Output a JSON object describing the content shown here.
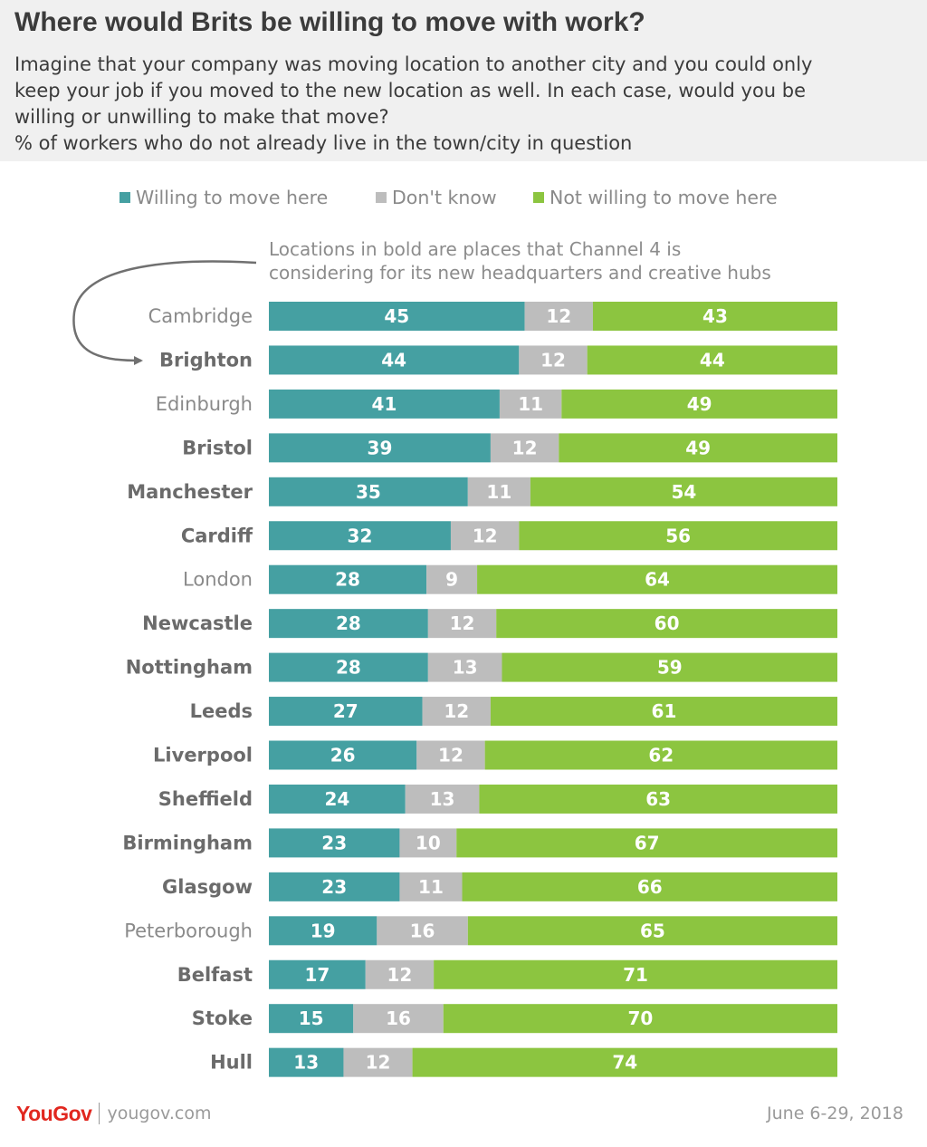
{
  "header": {
    "title": "Where would Brits be willing to move with work?",
    "subtitle_lines": [
      "Imagine that your company was moving location to another city and you could only",
      "keep your job if you moved to the new location as well. In each case, would you be",
      "willing or unwilling to make that move?",
      "% of workers who do not already live in the town/city in question"
    ]
  },
  "note_lines": [
    "Locations in bold are places that Channel 4 is",
    "considering for its new headquarters and creative hubs"
  ],
  "colors": {
    "willing": "#45a0a2",
    "dont_know": "#bdbdbd",
    "not_willing": "#8cc540"
  },
  "chart_data": {
    "type": "bar",
    "orientation": "horizontal",
    "stacked": true,
    "categories": [
      "Cambridge",
      "Brighton",
      "Edinburgh",
      "Bristol",
      "Manchester",
      "Cardiff",
      "London",
      "Newcastle",
      "Nottingham",
      "Leeds",
      "Liverpool",
      "Sheffield",
      "Birmingham",
      "Glasgow",
      "Peterborough",
      "Belfast",
      "Stoke",
      "Hull"
    ],
    "bold_categories": [
      "Brighton",
      "Bristol",
      "Manchester",
      "Cardiff",
      "Newcastle",
      "Nottingham",
      "Leeds",
      "Liverpool",
      "Sheffield",
      "Birmingham",
      "Glasgow",
      "Belfast",
      "Stoke",
      "Hull"
    ],
    "series": [
      {
        "name": "Willing to move here",
        "values": [
          45,
          44,
          41,
          39,
          35,
          32,
          28,
          28,
          28,
          27,
          26,
          24,
          23,
          23,
          19,
          17,
          15,
          13
        ]
      },
      {
        "name": "Don't know",
        "values": [
          12,
          12,
          11,
          12,
          11,
          12,
          9,
          12,
          13,
          12,
          12,
          13,
          10,
          11,
          16,
          12,
          16,
          12
        ]
      },
      {
        "name": "Not willing to move here",
        "values": [
          43,
          44,
          49,
          49,
          54,
          56,
          64,
          60,
          59,
          61,
          62,
          63,
          67,
          66,
          65,
          71,
          70,
          74
        ]
      }
    ],
    "legend_position": "top",
    "grid": false
  },
  "footer": {
    "brand": "YouGov",
    "url": "yougov.com",
    "date": "June 6-29, 2018"
  }
}
